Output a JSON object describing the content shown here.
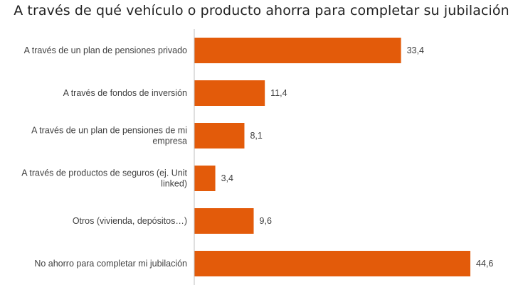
{
  "chart_data": {
    "type": "bar",
    "orientation": "horizontal",
    "title": "A través de qué vehículo o producto ahorra para completar su jubilación",
    "categories": [
      [
        "A través de un plan de pensiones privado"
      ],
      [
        "A través de fondos de inversión"
      ],
      [
        "A través de un plan de pensiones de mi",
        "empresa"
      ],
      [
        "A través de productos de seguros (ej. Unit",
        "linked)"
      ],
      [
        "Otros (vivienda, depósitos…)"
      ],
      [
        "No ahorro para completar mi jubilación"
      ]
    ],
    "values": [
      33.4,
      11.4,
      8.1,
      3.4,
      9.6,
      44.6
    ],
    "value_labels": [
      "33,4",
      "11,4",
      "8,1",
      "3,4",
      "9,6",
      "44,6"
    ],
    "xlim": [
      0,
      50
    ],
    "xlabel": "",
    "ylabel": "",
    "bar_color": "#E35B0A",
    "axis_color": "#BFBFBF",
    "grid": false,
    "legend": "none"
  }
}
